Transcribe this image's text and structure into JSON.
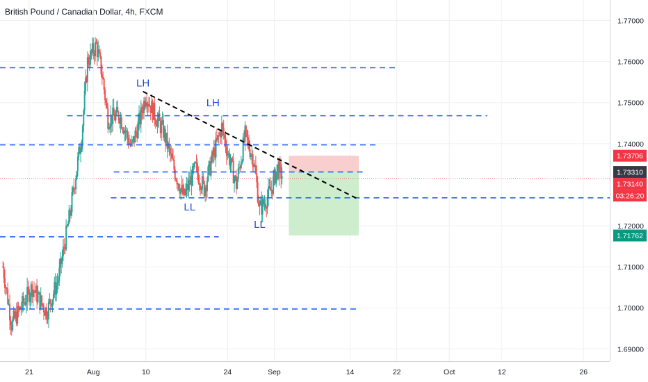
{
  "chart_data": {
    "type": "candlestick",
    "title": "British Pound / Canadian Dollar, 4h, FXCM",
    "colors": {
      "up": "#26a69a",
      "down": "#ef5350",
      "hline": "#2962ff",
      "trend": "#000000",
      "stop_zone": "#f7c5c5",
      "target_zone": "#c8ebc7",
      "price_tag": "#f23645",
      "close_tag": "#363a45",
      "target_tag": "#089981"
    },
    "ylim": [
      1.687,
      1.775
    ],
    "y_ticks": [
      {
        "value": 1.77,
        "label": "1.77000"
      },
      {
        "value": 1.76,
        "label": "1.76000"
      },
      {
        "value": 1.75,
        "label": "1.75000"
      },
      {
        "value": 1.74,
        "label": "1.74000"
      },
      {
        "value": 1.72,
        "label": "1.72000"
      },
      {
        "value": 1.71,
        "label": "1.71000"
      },
      {
        "value": 1.7,
        "label": "1.70000"
      },
      {
        "value": 1.69,
        "label": "1.69000"
      }
    ],
    "x_ticks": [
      {
        "day": 0,
        "label": "21"
      },
      {
        "day": 11,
        "label": "Aug"
      },
      {
        "day": 20,
        "label": "10"
      },
      {
        "day": 34,
        "label": "24"
      },
      {
        "day": 42,
        "label": "Sep"
      },
      {
        "day": 55,
        "label": "14"
      },
      {
        "day": 63,
        "label": "22"
      },
      {
        "day": 72,
        "label": "Oct"
      },
      {
        "day": 81,
        "label": "12"
      },
      {
        "day": 95,
        "label": "26"
      }
    ],
    "xlim_days": [
      -5,
      99.5
    ],
    "key_points": [
      {
        "day": -4.5,
        "price": 1.71
      },
      {
        "day": -3.0,
        "price": 1.696
      },
      {
        "day": 0.5,
        "price": 1.705
      },
      {
        "day": 3.0,
        "price": 1.699
      },
      {
        "day": 5.0,
        "price": 1.707
      },
      {
        "day": 7.0,
        "price": 1.723
      },
      {
        "day": 9.0,
        "price": 1.742
      },
      {
        "day": 10.0,
        "price": 1.76
      },
      {
        "day": 11.5,
        "price": 1.764
      },
      {
        "day": 12.5,
        "price": 1.757
      },
      {
        "day": 13.5,
        "price": 1.746
      },
      {
        "day": 15.5,
        "price": 1.747
      },
      {
        "day": 17.5,
        "price": 1.739
      },
      {
        "day": 19.0,
        "price": 1.746
      },
      {
        "day": 20.0,
        "price": 1.752
      },
      {
        "day": 21.5,
        "price": 1.747
      },
      {
        "day": 23.0,
        "price": 1.743
      },
      {
        "day": 25.0,
        "price": 1.733
      },
      {
        "day": 26.5,
        "price": 1.727
      },
      {
        "day": 28.5,
        "price": 1.734
      },
      {
        "day": 30.0,
        "price": 1.729
      },
      {
        "day": 31.5,
        "price": 1.737
      },
      {
        "day": 33.0,
        "price": 1.744
      },
      {
        "day": 34.0,
        "price": 1.738
      },
      {
        "day": 35.5,
        "price": 1.73
      },
      {
        "day": 37.0,
        "price": 1.742
      },
      {
        "day": 38.5,
        "price": 1.736
      },
      {
        "day": 39.5,
        "price": 1.724
      },
      {
        "day": 40.5,
        "price": 1.726
      },
      {
        "day": 41.5,
        "price": 1.729
      },
      {
        "day": 42.5,
        "price": 1.734
      },
      {
        "day": 43.5,
        "price": 1.732
      }
    ],
    "horizontal_levels": [
      {
        "price": 1.7585,
        "from_day": -5,
        "to_day": 63.0
      },
      {
        "price": 1.7468,
        "from_day": 6.5,
        "to_day": 78.5
      },
      {
        "price": 1.7397,
        "from_day": -5,
        "to_day": 59.5
      },
      {
        "price": 1.7331,
        "from_day": 14.5,
        "to_day": 57.5
      },
      {
        "price": 1.7268,
        "from_day": 14.0,
        "to_day": 99.5
      },
      {
        "price": 1.7173,
        "from_day": -5,
        "to_day": 32.5
      },
      {
        "price": 1.6997,
        "from_day": -5,
        "to_day": 56.0
      }
    ],
    "trendline": {
      "from_day": 19.5,
      "from_price": 1.7527,
      "to_day": 56.5,
      "to_price": 1.7264
    },
    "current_price_line": 1.7314,
    "position": {
      "from_day": 44.5,
      "to_day": 56.5,
      "entry": 1.7331,
      "stop": 1.73706,
      "target": 1.71762
    },
    "annotations": [
      {
        "text": "LH",
        "day": 19.5,
        "price": 1.7539
      },
      {
        "text": "LH",
        "day": 31.5,
        "price": 1.7491
      },
      {
        "text": "LL",
        "day": 27.5,
        "price": 1.7237
      },
      {
        "text": "LL",
        "day": 39.5,
        "price": 1.7195
      }
    ],
    "price_tags": [
      {
        "label": "1.73706",
        "price": 1.73706,
        "kind": "stop"
      },
      {
        "label": "1.73310",
        "price": 1.7331,
        "kind": "close"
      },
      {
        "label": "1.73140",
        "price": 1.7314,
        "kind": "price"
      },
      {
        "label": "03:26:20",
        "price": 1.7285,
        "kind": "price"
      },
      {
        "label": "1.71762",
        "price": 1.71762,
        "kind": "target"
      }
    ]
  }
}
